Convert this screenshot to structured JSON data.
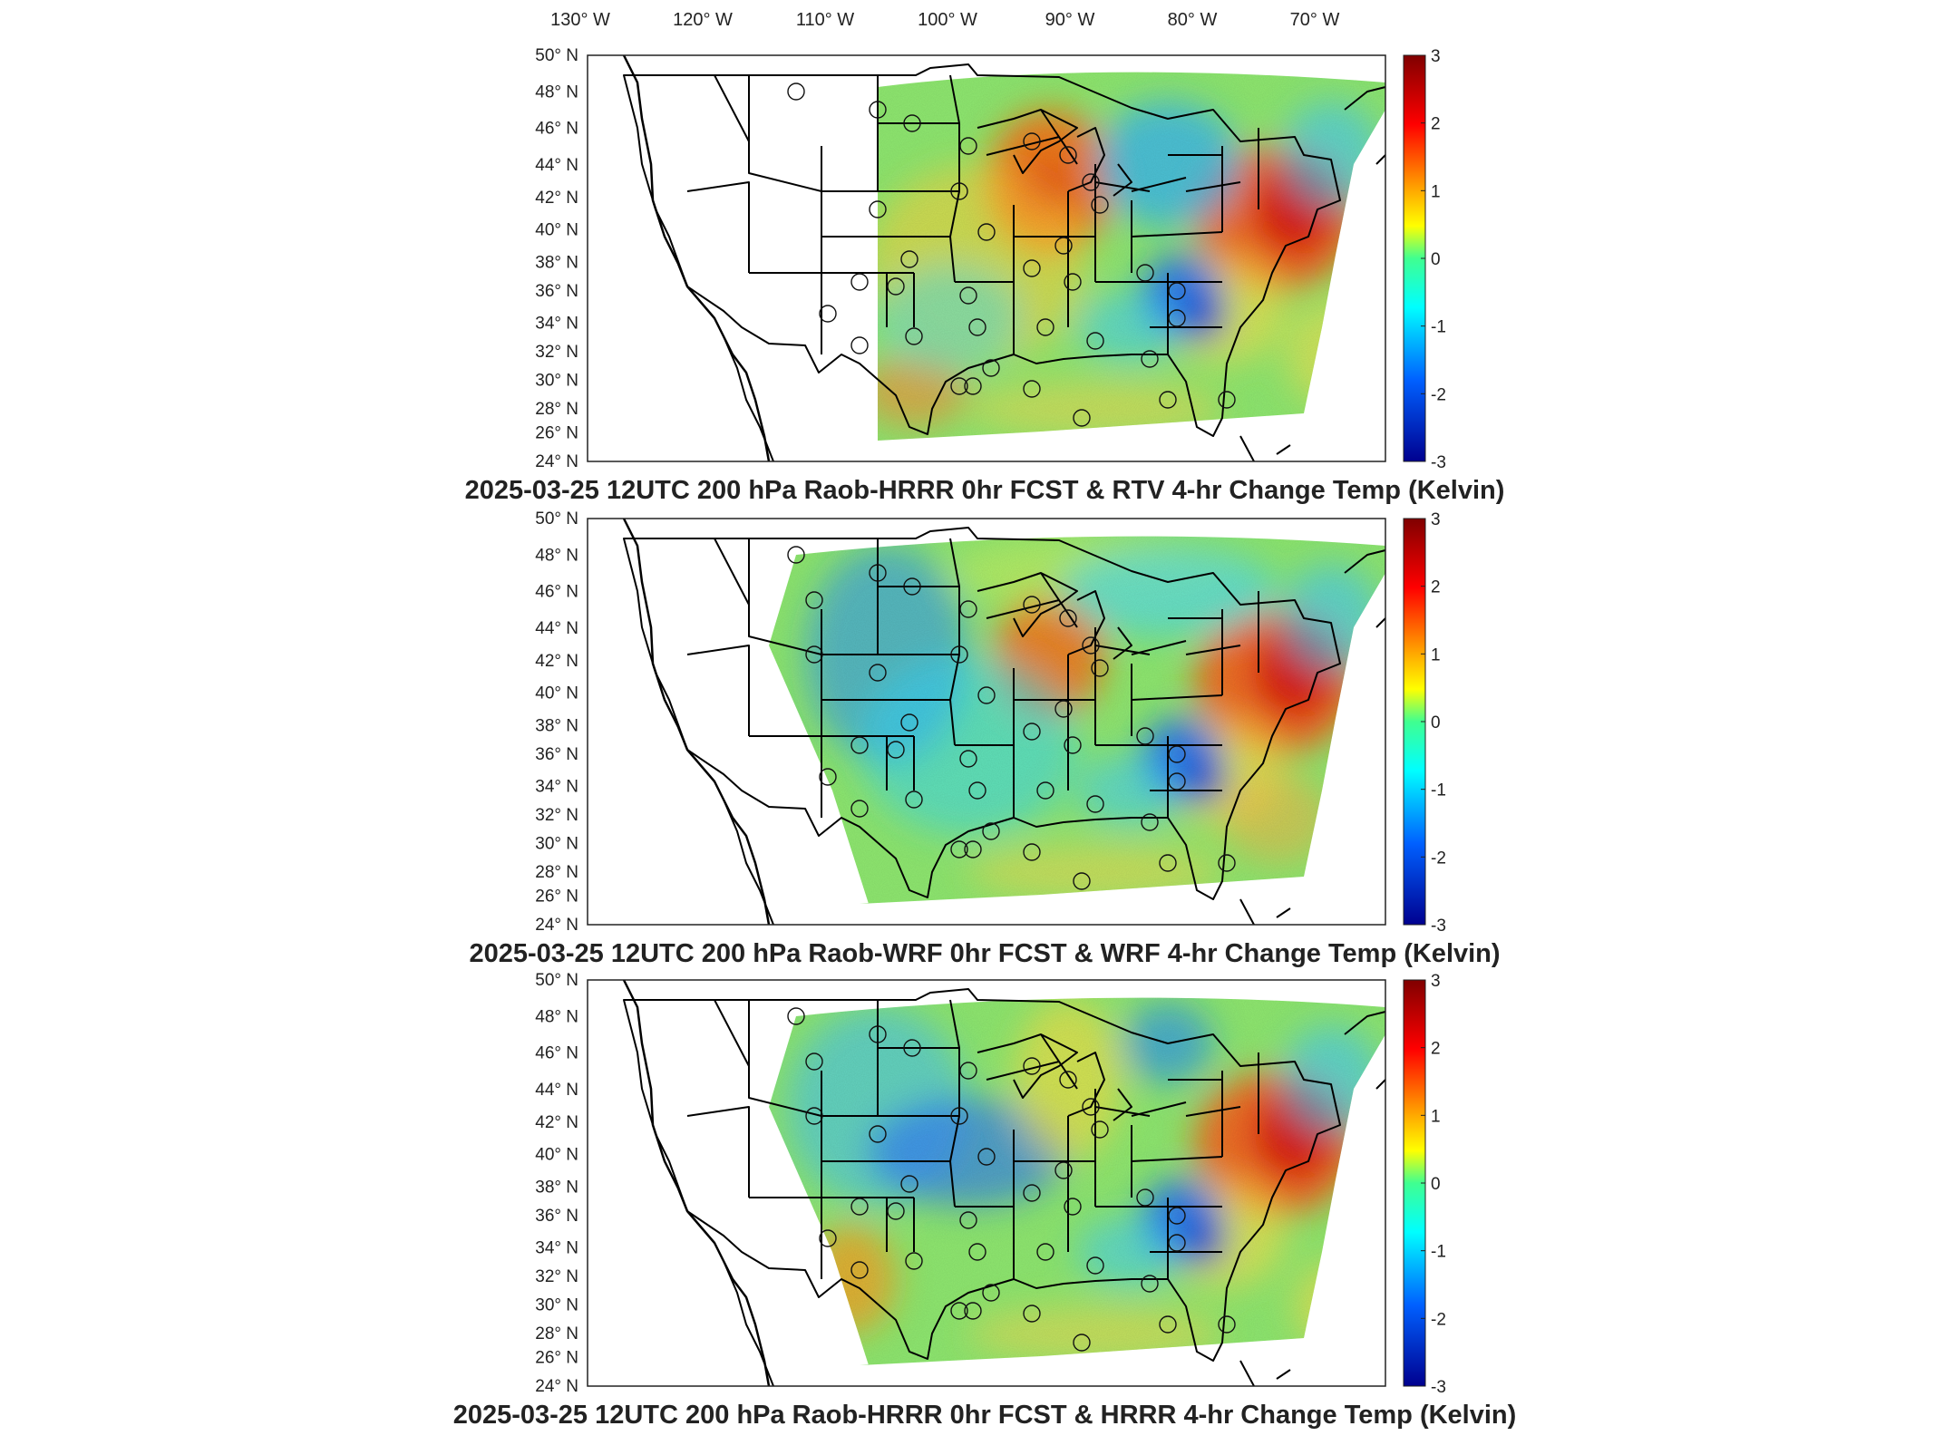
{
  "lon_labels": [
    {
      "deg": "130",
      "suffix": "W"
    },
    {
      "deg": "120",
      "suffix": "W"
    },
    {
      "deg": "110",
      "suffix": "W"
    },
    {
      "deg": "100",
      "suffix": "W"
    },
    {
      "deg": "90",
      "suffix": "W"
    },
    {
      "deg": "80",
      "suffix": "W"
    },
    {
      "deg": "70",
      "suffix": "W"
    }
  ],
  "lat_labels": [
    {
      "deg": "50",
      "suffix": "N"
    },
    {
      "deg": "48",
      "suffix": "N"
    },
    {
      "deg": "46",
      "suffix": "N"
    },
    {
      "deg": "44",
      "suffix": "N"
    },
    {
      "deg": "42",
      "suffix": "N"
    },
    {
      "deg": "40",
      "suffix": "N"
    },
    {
      "deg": "38",
      "suffix": "N"
    },
    {
      "deg": "36",
      "suffix": "N"
    },
    {
      "deg": "34",
      "suffix": "N"
    },
    {
      "deg": "32",
      "suffix": "N"
    },
    {
      "deg": "30",
      "suffix": "N"
    },
    {
      "deg": "28",
      "suffix": "N"
    },
    {
      "deg": "26",
      "suffix": "N"
    },
    {
      "deg": "24",
      "suffix": "N"
    }
  ],
  "colorbar": {
    "ticks": [
      "3",
      "2",
      "1",
      "0",
      "-1",
      "-2",
      "-3"
    ],
    "stops": [
      "#800000",
      "#ff0000",
      "#ffff00",
      "#00ff80",
      "#00ffff",
      "#0060ff",
      "#00008f"
    ]
  },
  "panels": [
    {
      "title": "2025-03-25 12UTC 200 hPa Raob-HRRR 0hr FCST & RTV 4-hr Change Temp (Kelvin)",
      "domain_west_edge": "narrow",
      "hot_regions": [
        "Northeast",
        "Upper Midwest"
      ],
      "cold_regions": [
        "Carolinas",
        "Great Lakes east"
      ]
    },
    {
      "title": "2025-03-25 12UTC 200 hPa Raob-WRF 0hr FCST & WRF 4-hr Change Temp (Kelvin)",
      "domain_west_edge": "wide",
      "hot_regions": [
        "Northeast",
        "Upper Midwest"
      ],
      "cold_regions": [
        "Carolinas",
        "Northern Rockies"
      ]
    },
    {
      "title": "2025-03-25 12UTC 200 hPa Raob-HRRR 0hr FCST & HRRR 4-hr Change Temp (Kelvin)",
      "domain_west_edge": "wide",
      "hot_regions": [
        "Northeast",
        "Southwest Texas"
      ],
      "cold_regions": [
        "Carolinas",
        "Central Plains",
        "Great Lakes east"
      ]
    }
  ]
}
